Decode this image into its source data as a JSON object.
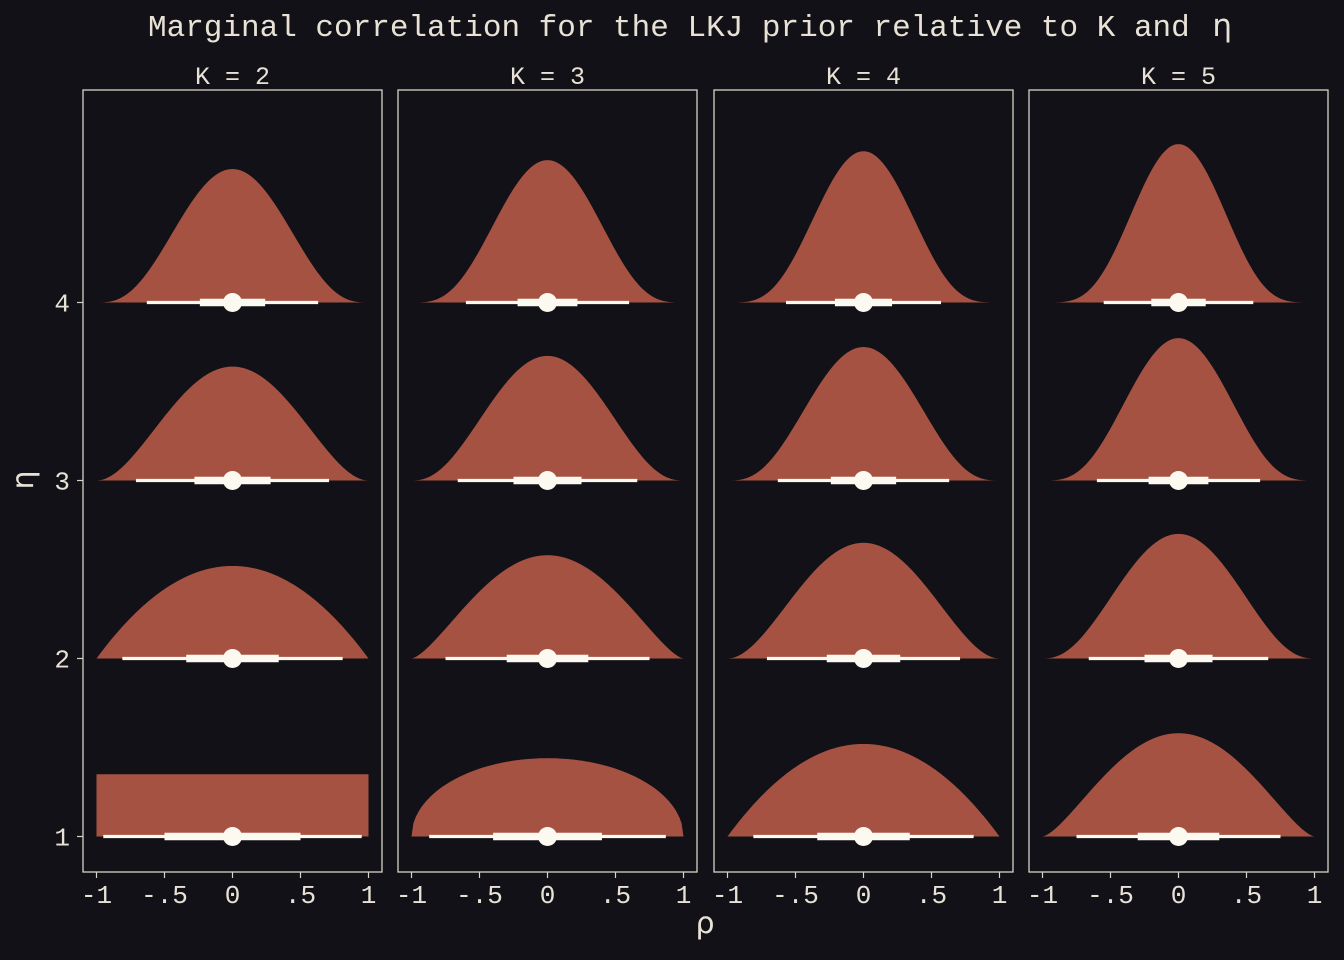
{
  "chart_data": {
    "type": "halfeye-density",
    "title_text": "Marginal correlation for the LKJ prior relative to K and ",
    "title_symbol": "η",
    "xlabel": "ρ",
    "ylabel": "η",
    "xlim": [
      -1,
      1
    ],
    "ylim": [
      1,
      4
    ],
    "x_ticks": [
      "-1",
      "-.5",
      "0",
      ".5",
      "1"
    ],
    "x_tick_values": [
      -1,
      -0.5,
      0,
      0.5,
      1
    ],
    "y_ticks": [
      "1",
      "2",
      "3",
      "4"
    ],
    "y_tick_values": [
      1,
      2,
      3,
      4
    ],
    "grid": false,
    "colors": {
      "background": "#121117",
      "density_fill": "#a65243",
      "interval": "#fcf9f0",
      "panel_border": "#d8d2c6",
      "text": "#e8e2d6"
    },
    "panels": [
      {
        "label": "K = 2",
        "densities": [
          {
            "eta": 1,
            "peak_height": 0.35,
            "shape": "uniform",
            "interval_66": [
              -0.5,
              0.5
            ],
            "interval_95": [
              -0.95,
              0.95
            ]
          },
          {
            "eta": 2,
            "peak_height": 0.52,
            "interval_66": [
              -0.34,
              0.34
            ],
            "interval_95": [
              -0.81,
              0.81
            ]
          },
          {
            "eta": 3,
            "peak_height": 0.64,
            "interval_66": [
              -0.28,
              0.28
            ],
            "interval_95": [
              -0.71,
              0.71
            ]
          },
          {
            "eta": 4,
            "peak_height": 0.75,
            "interval_66": [
              -0.24,
              0.24
            ],
            "interval_95": [
              -0.63,
              0.63
            ]
          }
        ]
      },
      {
        "label": "K = 3",
        "densities": [
          {
            "eta": 1,
            "peak_height": 0.44,
            "interval_66": [
              -0.4,
              0.4
            ],
            "interval_95": [
              -0.87,
              0.87
            ]
          },
          {
            "eta": 2,
            "peak_height": 0.58,
            "interval_66": [
              -0.3,
              0.3
            ],
            "interval_95": [
              -0.75,
              0.75
            ]
          },
          {
            "eta": 3,
            "peak_height": 0.7,
            "interval_66": [
              -0.25,
              0.25
            ],
            "interval_95": [
              -0.66,
              0.66
            ]
          },
          {
            "eta": 4,
            "peak_height": 0.8,
            "interval_66": [
              -0.22,
              0.22
            ],
            "interval_95": [
              -0.6,
              0.6
            ]
          }
        ]
      },
      {
        "label": "K = 4",
        "densities": [
          {
            "eta": 1,
            "peak_height": 0.52,
            "interval_66": [
              -0.34,
              0.34
            ],
            "interval_95": [
              -0.81,
              0.81
            ]
          },
          {
            "eta": 2,
            "peak_height": 0.65,
            "interval_66": [
              -0.27,
              0.27
            ],
            "interval_95": [
              -0.71,
              0.71
            ]
          },
          {
            "eta": 3,
            "peak_height": 0.75,
            "interval_66": [
              -0.24,
              0.24
            ],
            "interval_95": [
              -0.63,
              0.63
            ]
          },
          {
            "eta": 4,
            "peak_height": 0.85,
            "interval_66": [
              -0.21,
              0.21
            ],
            "interval_95": [
              -0.57,
              0.57
            ]
          }
        ]
      },
      {
        "label": "K = 5",
        "densities": [
          {
            "eta": 1,
            "peak_height": 0.58,
            "interval_66": [
              -0.3,
              0.3
            ],
            "interval_95": [
              -0.75,
              0.75
            ]
          },
          {
            "eta": 2,
            "peak_height": 0.7,
            "interval_66": [
              -0.25,
              0.25
            ],
            "interval_95": [
              -0.66,
              0.66
            ]
          },
          {
            "eta": 3,
            "peak_height": 0.8,
            "interval_66": [
              -0.22,
              0.22
            ],
            "interval_95": [
              -0.6,
              0.6
            ]
          },
          {
            "eta": 4,
            "peak_height": 0.89,
            "interval_66": [
              -0.2,
              0.2
            ],
            "interval_95": [
              -0.55,
              0.55
            ]
          }
        ]
      }
    ]
  }
}
